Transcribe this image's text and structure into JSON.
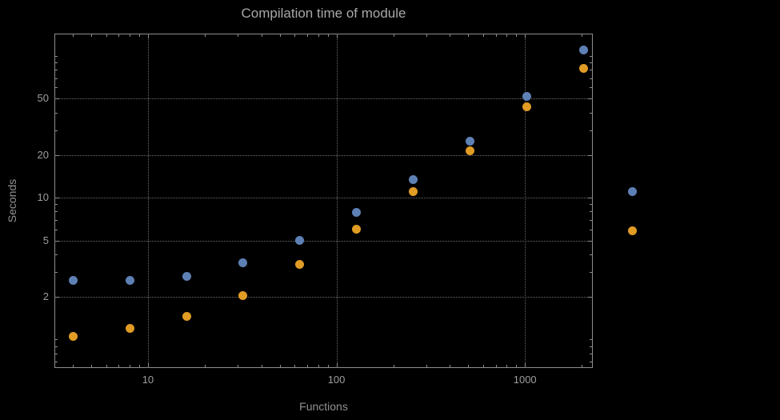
{
  "chart_data": {
    "type": "scatter",
    "title": "Compilation time of module",
    "xlabel": "Functions",
    "ylabel": "Seconds",
    "x_scale": "log",
    "y_scale": "log",
    "xlim": [
      3.19,
      2290
    ],
    "ylim": [
      0.63,
      144
    ],
    "grid": "dotted",
    "x": [
      4,
      8,
      16,
      32,
      64,
      128,
      256,
      512,
      1024,
      2048
    ],
    "series": [
      {
        "name": "blue",
        "color": "#5e81b5",
        "values": [
          2.6,
          2.6,
          2.8,
          3.5,
          5.0,
          7.9,
          13.5,
          25,
          52,
          110
        ]
      },
      {
        "name": "orange",
        "color": "#e19c24",
        "values": [
          1.05,
          1.2,
          1.45,
          2.05,
          3.4,
          6.0,
          11,
          21.5,
          44,
          82
        ]
      }
    ],
    "x_ticks": [
      {
        "value": 10,
        "label": "10"
      },
      {
        "value": 100,
        "label": "100"
      },
      {
        "value": 1000,
        "label": "1000"
      }
    ],
    "y_ticks": [
      {
        "value": 2,
        "label": "2"
      },
      {
        "value": 5,
        "label": "5"
      },
      {
        "value": 10,
        "label": "10"
      },
      {
        "value": 20,
        "label": "20"
      },
      {
        "value": 50,
        "label": "50"
      }
    ],
    "x_gridlines": [
      10,
      100,
      1000
    ],
    "y_gridlines": [
      2,
      5,
      10,
      20,
      50
    ],
    "legend": {
      "visible": true,
      "position": "right"
    },
    "colors": {
      "background": "#000000",
      "frame": "#8c8c8c",
      "gridline": "#6a6a6a",
      "title_text": "#a8a8a8",
      "tick_text": "#9e9e9e",
      "axis_label_text": "#929292"
    }
  }
}
